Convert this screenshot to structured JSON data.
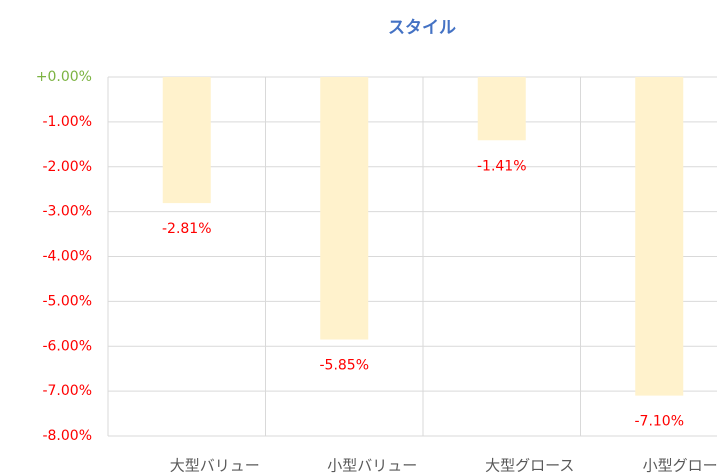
{
  "chart_data": {
    "type": "bar",
    "title": "スタイル",
    "categories": [
      "大型バリュー",
      "小型バリュー",
      "大型グロース",
      "小型グロース"
    ],
    "values": [
      -2.81,
      -5.85,
      -1.41,
      -7.1
    ],
    "value_labels": [
      "-2.81%",
      "-5.85%",
      "-1.41%",
      "-7.10%"
    ],
    "color": "#fff2cc",
    "value_label_color": "#ff0000",
    "title_color": "#4472c4",
    "ylim": [
      -8,
      0
    ],
    "yticks": [
      {
        "value": 0,
        "label": "+0.00%"
      },
      {
        "value": -1,
        "label": "-1.00%"
      },
      {
        "value": -2,
        "label": "-2.00%"
      },
      {
        "value": -3,
        "label": "-3.00%"
      },
      {
        "value": -4,
        "label": "-4.00%"
      },
      {
        "value": -5,
        "label": "-5.00%"
      },
      {
        "value": -6,
        "label": "-6.00%"
      },
      {
        "value": -7,
        "label": "-7.00%"
      },
      {
        "value": -8,
        "label": "-8.00%"
      }
    ],
    "ytick_colors": [
      "#7cb342",
      "#ff0000",
      "#ff0000",
      "#ff0000",
      "#ff0000",
      "#ff0000",
      "#ff0000",
      "#ff0000",
      "#ff0000"
    ],
    "grid": true
  }
}
